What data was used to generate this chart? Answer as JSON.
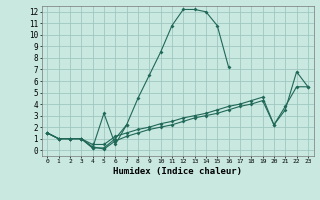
{
  "title": "",
  "xlabel": "Humidex (Indice chaleur)",
  "background_color": "#c8e8e0",
  "grid_color": "#a0c8c0",
  "line_color": "#206858",
  "xlim": [
    -0.5,
    23.5
  ],
  "ylim": [
    -0.5,
    12.5
  ],
  "xticks": [
    0,
    1,
    2,
    3,
    4,
    5,
    6,
    7,
    8,
    9,
    10,
    11,
    12,
    13,
    14,
    15,
    16,
    17,
    18,
    19,
    20,
    21,
    22,
    23
  ],
  "yticks": [
    0,
    1,
    2,
    3,
    4,
    5,
    6,
    7,
    8,
    9,
    10,
    11,
    12
  ],
  "line1_x": [
    0,
    1,
    2,
    3,
    4,
    5,
    6,
    7,
    8,
    9,
    10,
    11,
    12,
    13,
    14,
    15,
    16
  ],
  "line1_y": [
    1.5,
    1.0,
    1.0,
    1.0,
    0.2,
    3.2,
    0.5,
    2.2,
    4.5,
    6.5,
    8.5,
    10.8,
    12.2,
    12.2,
    12.0,
    10.8,
    7.2
  ],
  "line2_x": [
    0,
    1,
    2,
    3,
    4,
    5,
    6,
    7
  ],
  "line2_y": [
    1.5,
    1.0,
    1.0,
    1.0,
    0.2,
    0.2,
    1.0,
    2.2
  ],
  "line3_x": [
    0,
    1,
    2,
    3,
    4,
    5,
    6,
    7,
    8,
    9,
    10,
    11,
    12,
    13,
    14,
    15,
    16,
    17,
    18,
    19,
    20,
    21,
    22,
    23
  ],
  "line3_y": [
    1.5,
    1.0,
    1.0,
    1.0,
    0.5,
    0.5,
    1.2,
    1.5,
    1.8,
    2.0,
    2.3,
    2.5,
    2.8,
    3.0,
    3.2,
    3.5,
    3.8,
    4.0,
    4.3,
    4.6,
    2.2,
    3.8,
    5.5,
    5.5
  ],
  "line4_x": [
    0,
    1,
    2,
    3,
    4,
    5,
    6,
    7,
    8,
    9,
    10,
    11,
    12,
    13,
    14,
    15,
    16,
    17,
    18,
    19,
    20,
    21,
    22,
    23
  ],
  "line4_y": [
    1.5,
    1.0,
    1.0,
    1.0,
    0.3,
    0.1,
    0.8,
    1.2,
    1.5,
    1.8,
    2.0,
    2.2,
    2.5,
    2.8,
    3.0,
    3.2,
    3.5,
    3.8,
    4.0,
    4.3,
    2.2,
    3.5,
    6.8,
    5.5
  ]
}
